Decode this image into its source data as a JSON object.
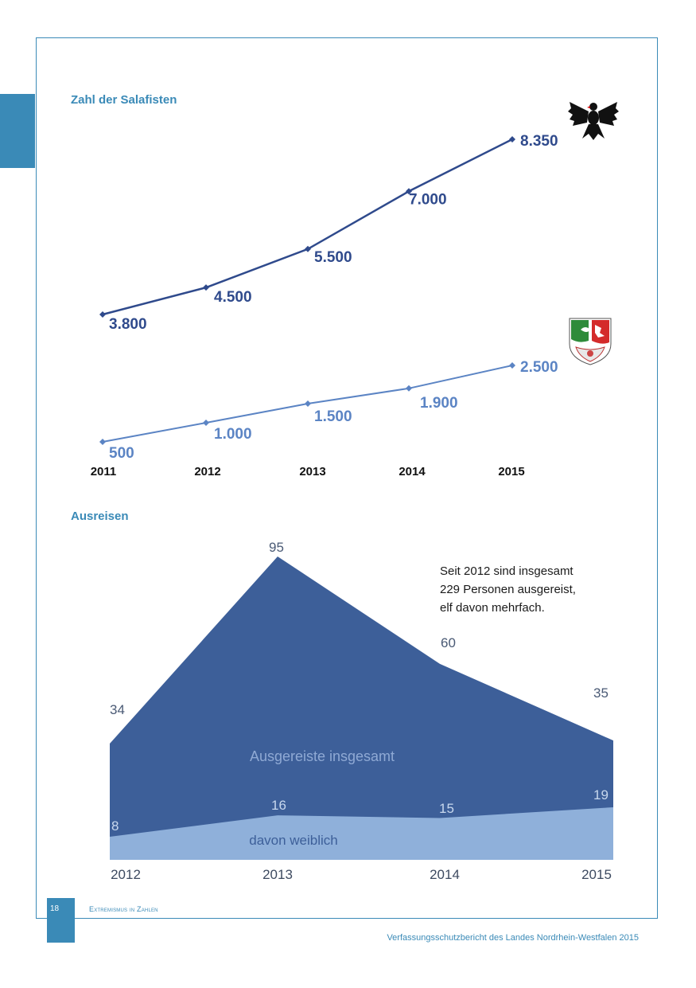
{
  "section1": {
    "title": "Zahl der Salafisten"
  },
  "section2": {
    "title": "Ausreisen"
  },
  "note": {
    "line1": "Seit 2012 sind insgesamt",
    "line2": "229 Personen ausgereist,",
    "line3": "elf davon mehrfach."
  },
  "footer": {
    "page_number": "18",
    "running_head": "Extremismus in Zahlen",
    "report_title": "Verfassungsschutzbericht des Landes Nordrhein-Westfalen 2015"
  },
  "chart_data": [
    {
      "type": "line",
      "title": "Zahl der Salafisten",
      "categories": [
        "2011",
        "2012",
        "2013",
        "2014",
        "2015"
      ],
      "ylim": [
        0,
        9000
      ],
      "series": [
        {
          "name": "Bund",
          "emblem": "eagle-emblem",
          "color": "#2f4a8c",
          "values": [
            3800,
            4500,
            5500,
            7000,
            8350
          ],
          "labels": [
            "3.800",
            "4.500",
            "5.500",
            "7.000",
            "8.350"
          ]
        },
        {
          "name": "NRW",
          "emblem": "nrw-coat-of-arms",
          "color": "#5b84c4",
          "values": [
            500,
            1000,
            1500,
            1900,
            2500
          ],
          "labels": [
            "500",
            "1.000",
            "1.500",
            "1.900",
            "2.500"
          ]
        }
      ]
    },
    {
      "type": "area",
      "title": "Ausreisen",
      "categories": [
        "2012",
        "2013",
        "2014",
        "2015"
      ],
      "ylim": [
        0,
        100
      ],
      "series": [
        {
          "name": "Ausgereiste insgesamt",
          "color": "#3d5f99",
          "values": [
            34,
            95,
            60,
            35
          ],
          "labels": [
            "34",
            "95",
            "60",
            "35"
          ]
        },
        {
          "name": "davon weiblich",
          "color": "#8fb0da",
          "values": [
            8,
            16,
            15,
            19
          ],
          "labels": [
            "8",
            "16",
            "15",
            "19"
          ]
        }
      ]
    }
  ]
}
